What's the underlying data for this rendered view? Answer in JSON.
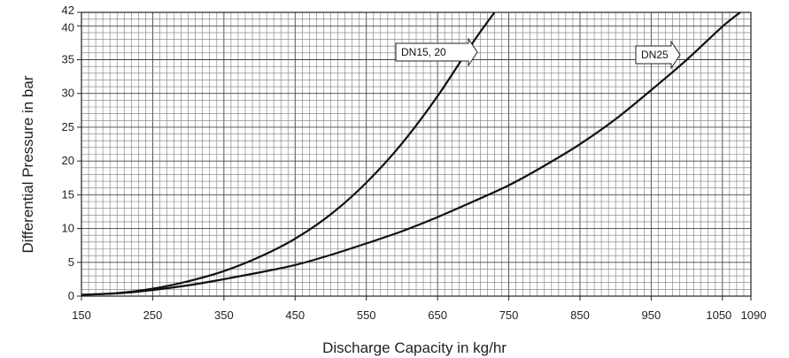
{
  "chart_data": {
    "type": "line",
    "title": "",
    "xlabel": "Discharge Capacity in kg/hr",
    "ylabel": "Differential Pressure in bar",
    "xlim": [
      150,
      1090
    ],
    "ylim": [
      0,
      42
    ],
    "x_ticks": [
      150,
      250,
      350,
      450,
      550,
      650,
      750,
      850,
      950,
      1050,
      1090
    ],
    "y_ticks": [
      0,
      5,
      10,
      15,
      20,
      25,
      30,
      35,
      40,
      42
    ],
    "grid": true,
    "series": [
      {
        "name": "DN15, 20",
        "color": "#111111",
        "points": [
          [
            150,
            0.2
          ],
          [
            200,
            0.45
          ],
          [
            250,
            1.1
          ],
          [
            300,
            2.2
          ],
          [
            350,
            3.7
          ],
          [
            400,
            5.8
          ],
          [
            450,
            8.5
          ],
          [
            500,
            12.1
          ],
          [
            550,
            16.8
          ],
          [
            600,
            22.6
          ],
          [
            650,
            29.6
          ],
          [
            700,
            37.6
          ],
          [
            730,
            42
          ]
        ]
      },
      {
        "name": "DN25",
        "color": "#111111",
        "points": [
          [
            150,
            0.2
          ],
          [
            200,
            0.4
          ],
          [
            250,
            0.9
          ],
          [
            300,
            1.6
          ],
          [
            350,
            2.5
          ],
          [
            400,
            3.5
          ],
          [
            450,
            4.6
          ],
          [
            500,
            6.1
          ],
          [
            550,
            7.8
          ],
          [
            600,
            9.6
          ],
          [
            650,
            11.7
          ],
          [
            700,
            14.0
          ],
          [
            750,
            16.4
          ],
          [
            800,
            19.3
          ],
          [
            850,
            22.5
          ],
          [
            900,
            26.2
          ],
          [
            950,
            30.5
          ],
          [
            1000,
            35.0
          ],
          [
            1050,
            39.9
          ],
          [
            1075,
            42
          ]
        ]
      }
    ],
    "annotations": [
      {
        "text": "DN15, 20",
        "series": 0
      },
      {
        "text": "DN25",
        "series": 1
      }
    ]
  }
}
